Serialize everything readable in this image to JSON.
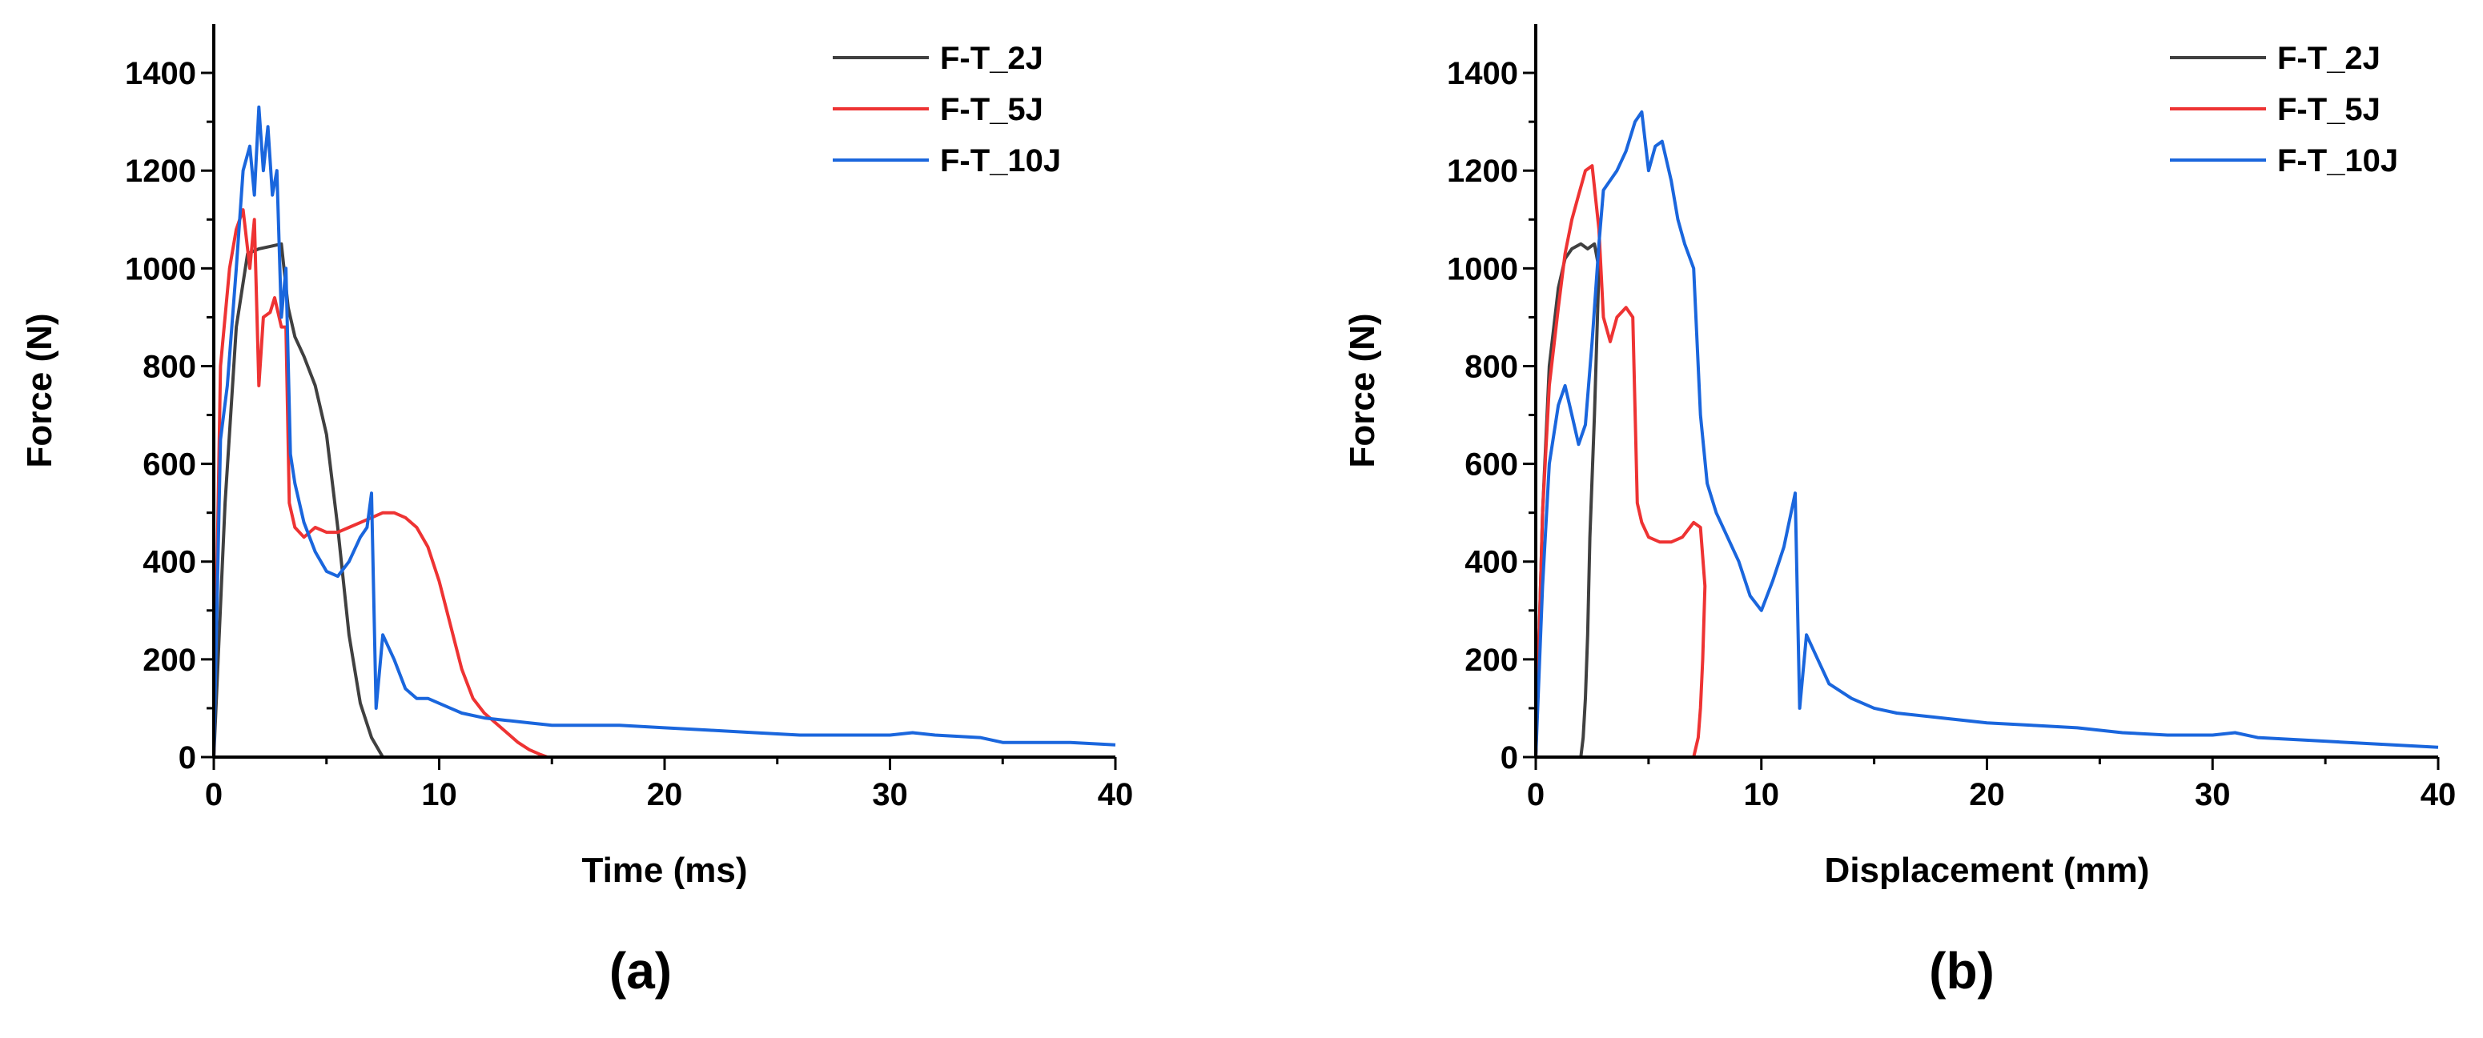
{
  "chart_data": [
    {
      "type": "line",
      "panel_label": "(a)",
      "xlabel": "Time (ms)",
      "ylabel": "Force (N)",
      "xlim": [
        0,
        40
      ],
      "ylim": [
        0,
        1500
      ],
      "xticks": [
        0,
        10,
        20,
        30,
        40
      ],
      "yticks": [
        0,
        200,
        400,
        600,
        800,
        1000,
        1200,
        1400
      ],
      "grid": false,
      "legend": "top-right",
      "series": [
        {
          "name": "F-T_2J",
          "color": "#404040",
          "x": [
            0,
            0.5,
            1.0,
            1.5,
            2.0,
            2.5,
            3.0,
            3.3,
            3.6,
            4.0,
            4.5,
            5.0,
            5.5,
            6.0,
            6.5,
            7.0,
            7.5
          ],
          "y": [
            0,
            520,
            880,
            1030,
            1040,
            1045,
            1050,
            920,
            860,
            820,
            760,
            660,
            470,
            250,
            110,
            40,
            0
          ]
        },
        {
          "name": "F-T_5J",
          "color": "#ee3333",
          "x": [
            0,
            0.3,
            0.7,
            1.0,
            1.3,
            1.6,
            1.8,
            2.0,
            2.2,
            2.5,
            2.7,
            3.0,
            3.2,
            3.35,
            3.6,
            4.0,
            4.5,
            5.0,
            5.5,
            6.0,
            6.5,
            7.0,
            7.5,
            8.0,
            8.5,
            9.0,
            9.5,
            10.0,
            10.5,
            11.0,
            11.5,
            12.0,
            12.5,
            13.0,
            13.5,
            14.0,
            14.5,
            14.8
          ],
          "y": [
            0,
            800,
            1000,
            1080,
            1120,
            1000,
            1100,
            760,
            900,
            910,
            940,
            880,
            880,
            520,
            470,
            450,
            470,
            460,
            460,
            470,
            480,
            490,
            500,
            500,
            490,
            470,
            430,
            360,
            270,
            180,
            120,
            90,
            70,
            50,
            30,
            15,
            5,
            0
          ]
        },
        {
          "name": "F-T_10J",
          "color": "#1a66dd",
          "x": [
            0,
            0.3,
            0.6,
            1.0,
            1.3,
            1.6,
            1.8,
            2.0,
            2.2,
            2.4,
            2.6,
            2.8,
            3.0,
            3.2,
            3.4,
            3.6,
            4.0,
            4.5,
            5.0,
            5.5,
            6.0,
            6.5,
            6.8,
            7.0,
            7.2,
            7.5,
            8.0,
            8.5,
            9.0,
            9.5,
            10.0,
            10.5,
            11.0,
            12.0,
            13.0,
            14.0,
            15.0,
            16.0,
            18.0,
            20.0,
            22.0,
            24.0,
            26.0,
            28.0,
            30.0,
            31.0,
            32.0,
            34.0,
            35.0,
            36.0,
            38.0,
            40.0
          ],
          "y": [
            0,
            650,
            760,
            1000,
            1200,
            1250,
            1150,
            1330,
            1200,
            1290,
            1150,
            1200,
            900,
            1000,
            620,
            560,
            480,
            420,
            380,
            370,
            400,
            450,
            470,
            540,
            100,
            250,
            200,
            140,
            120,
            120,
            110,
            100,
            90,
            80,
            75,
            70,
            65,
            65,
            65,
            60,
            55,
            50,
            45,
            45,
            45,
            50,
            45,
            40,
            30,
            30,
            30,
            25
          ]
        }
      ]
    },
    {
      "type": "line",
      "panel_label": "(b)",
      "xlabel": "Displacement (mm)",
      "ylabel": "Force (N)",
      "xlim": [
        0,
        40
      ],
      "ylim": [
        0,
        1500
      ],
      "xticks": [
        0,
        10,
        20,
        30,
        40
      ],
      "yticks": [
        0,
        200,
        400,
        600,
        800,
        1000,
        1200,
        1400
      ],
      "grid": false,
      "legend": "top-right",
      "series": [
        {
          "name": "F-T_2J",
          "color": "#404040",
          "x": [
            0,
            0.3,
            0.6,
            1.0,
            1.3,
            1.6,
            2.0,
            2.3,
            2.6,
            2.8,
            2.6,
            2.4,
            2.3,
            2.2,
            2.1,
            2.0
          ],
          "y": [
            0,
            500,
            800,
            960,
            1020,
            1040,
            1050,
            1040,
            1050,
            1000,
            700,
            450,
            250,
            120,
            40,
            0
          ]
        },
        {
          "name": "F-T_5J",
          "color": "#ee3333",
          "x": [
            0,
            0.3,
            0.6,
            1.0,
            1.3,
            1.6,
            1.9,
            2.2,
            2.5,
            2.8,
            3.0,
            3.3,
            3.6,
            4.0,
            4.3,
            4.5,
            4.7,
            5.0,
            5.5,
            6.0,
            6.5,
            7.0,
            7.3,
            7.5,
            7.4,
            7.3,
            7.2,
            7.0
          ],
          "y": [
            0,
            500,
            760,
            920,
            1030,
            1100,
            1150,
            1200,
            1210,
            1080,
            900,
            850,
            900,
            920,
            900,
            520,
            480,
            450,
            440,
            440,
            450,
            480,
            470,
            350,
            200,
            100,
            40,
            0
          ]
        },
        {
          "name": "F-T_10J",
          "color": "#1a66dd",
          "x": [
            0,
            0.3,
            0.6,
            1.0,
            1.3,
            1.6,
            1.9,
            2.2,
            2.5,
            2.8,
            3.0,
            3.3,
            3.6,
            4.0,
            4.4,
            4.7,
            5.0,
            5.3,
            5.6,
            6.0,
            6.3,
            6.6,
            7.0,
            7.3,
            7.6,
            8.0,
            8.5,
            9.0,
            9.5,
            10.0,
            10.5,
            11.0,
            11.5,
            11.7,
            12.0,
            12.5,
            13.0,
            14.0,
            15.0,
            16.0,
            18.0,
            20.0,
            22.0,
            24.0,
            26.0,
            28.0,
            30.0,
            31.0,
            32.0,
            34.0,
            36.0,
            38.0,
            40.0
          ],
          "y": [
            0,
            350,
            600,
            720,
            760,
            700,
            640,
            680,
            850,
            1050,
            1160,
            1180,
            1200,
            1240,
            1300,
            1320,
            1200,
            1250,
            1260,
            1180,
            1100,
            1050,
            1000,
            700,
            560,
            500,
            450,
            400,
            330,
            300,
            360,
            430,
            540,
            100,
            250,
            200,
            150,
            120,
            100,
            90,
            80,
            70,
            65,
            60,
            50,
            45,
            45,
            50,
            40,
            35,
            30,
            25,
            20
          ]
        }
      ]
    }
  ]
}
